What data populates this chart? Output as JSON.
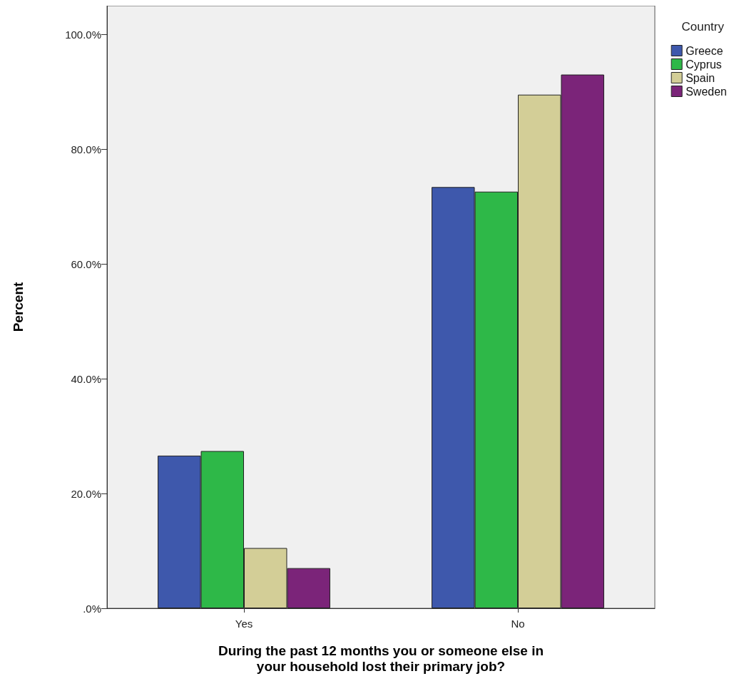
{
  "chart_data": {
    "type": "bar",
    "xlabel": "During the past 12 months you or someone else in\nyour household lost their primary job?",
    "ylabel": "Percent",
    "legend_title": "Country",
    "categories": [
      "Yes",
      "No"
    ],
    "series": [
      {
        "name": "Greece",
        "color": "#3e58ac",
        "values": [
          26.6,
          73.4
        ]
      },
      {
        "name": "Cyprus",
        "color": "#2eb848",
        "values": [
          27.4,
          72.6
        ]
      },
      {
        "name": "Spain",
        "color": "#d3ce97",
        "values": [
          10.5,
          89.5
        ]
      },
      {
        "name": "Sweden",
        "color": "#7b2479",
        "values": [
          7.0,
          93.0
        ]
      }
    ],
    "ylim": [
      0,
      105
    ],
    "yticks": [
      {
        "value": 0,
        "label": ".0%"
      },
      {
        "value": 20,
        "label": "20.0%"
      },
      {
        "value": 40,
        "label": "40.0%"
      },
      {
        "value": 60,
        "label": "60.0%"
      },
      {
        "value": 80,
        "label": "80.0%"
      },
      {
        "value": 100,
        "label": "100.0%"
      }
    ],
    "grid": false,
    "legend": "top right"
  }
}
